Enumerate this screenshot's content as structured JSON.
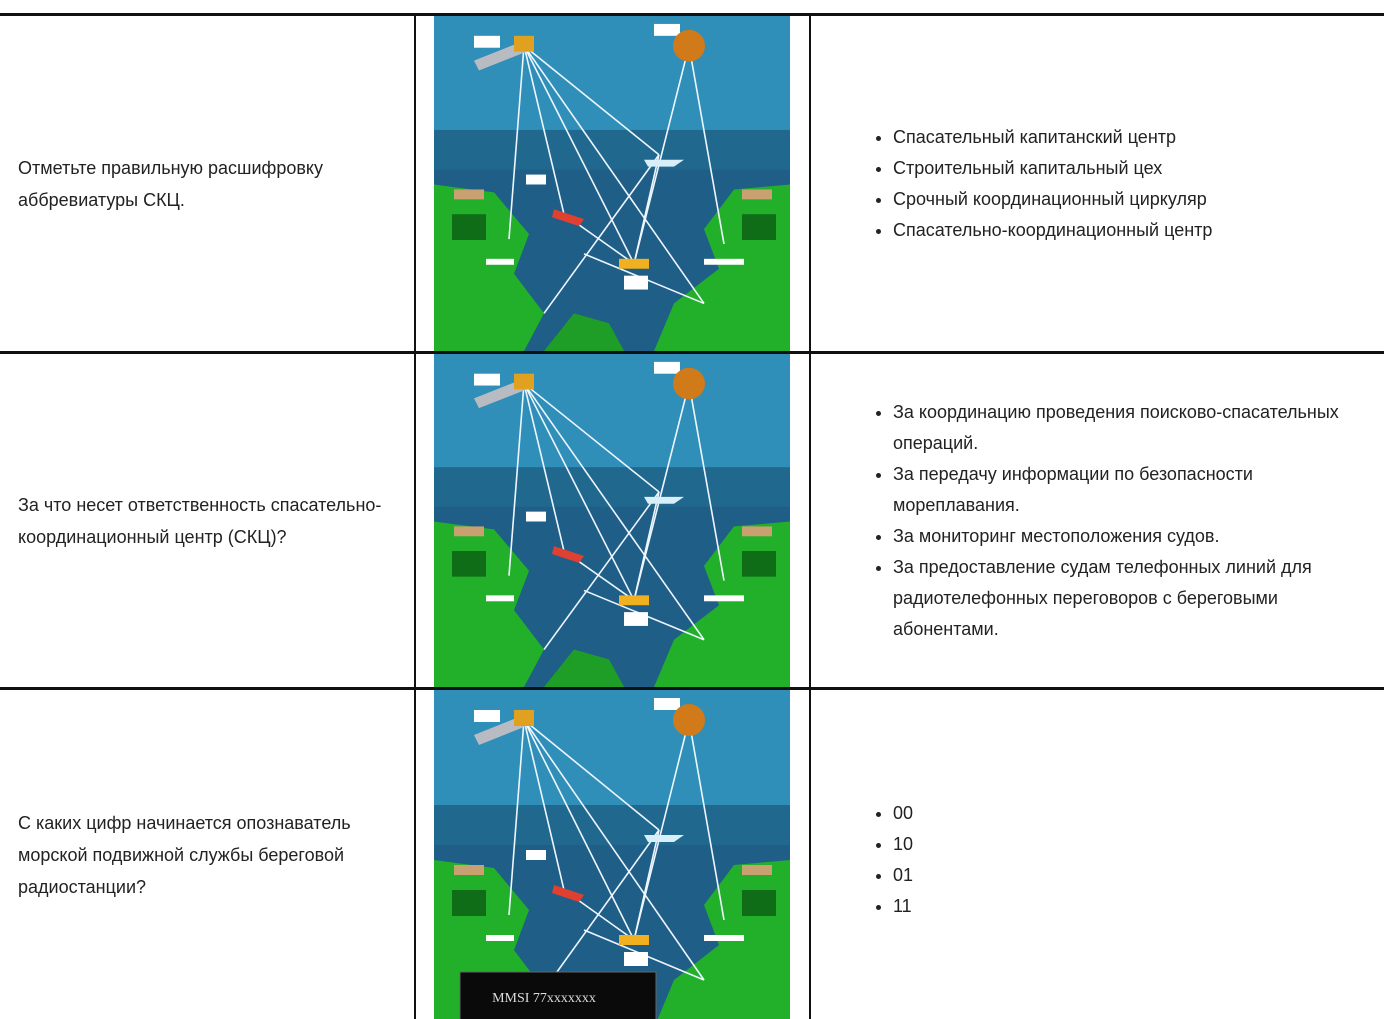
{
  "table": {
    "rows": [
      {
        "question": "Отметьте правильную расшифровку аббревиатуры СКЦ.",
        "answers": [
          "Спасательный капитанский центр",
          "Строительный капитальный цех",
          "Срочный координационный циркуляр",
          "Спасательно-координационный центр"
        ]
      },
      {
        "question": "За что несет ответственность спасательно-координационный центр (СКЦ)?",
        "answers": [
          "За координацию проведения поисково-спасательных операций.",
          "За передачу информации по безопасности мореплавания.",
          "За мониторинг местоположения судов.",
          "За предоставление судам телефонных линий для радиотелефонных переговоров с береговыми абонентами."
        ]
      },
      {
        "question": "С каких цифр начинается опознаватель морской подвижной службы береговой радиостанции?",
        "answers": [
          "00",
          "10",
          "01",
          "11"
        ],
        "image_label": "MMSI 77xxxxxxx"
      }
    ]
  }
}
